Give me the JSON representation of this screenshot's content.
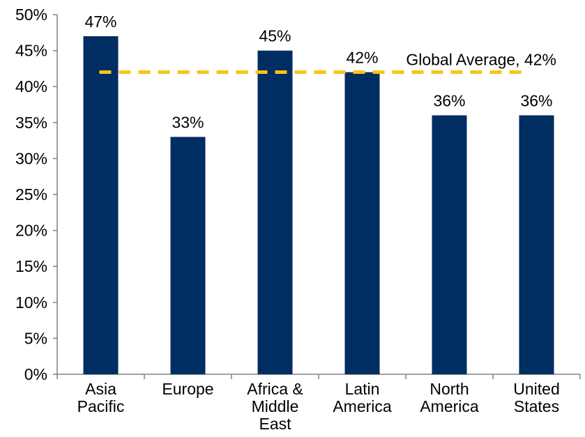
{
  "chart_data": {
    "type": "bar",
    "title": "",
    "xlabel": "",
    "ylabel": "",
    "categories": [
      [
        "Asia",
        "Pacific"
      ],
      [
        "Europe"
      ],
      [
        "Africa &",
        "Middle",
        "East"
      ],
      [
        "Latin",
        "America"
      ],
      [
        "North",
        "America"
      ],
      [
        "United",
        "States"
      ]
    ],
    "values": [
      47,
      33,
      45,
      42,
      36,
      36
    ],
    "data_labels": [
      "47%",
      "33%",
      "45%",
      "42%",
      "36%",
      "36%"
    ],
    "ylim": [
      0,
      50
    ],
    "yticks": [
      0,
      5,
      10,
      15,
      20,
      25,
      30,
      35,
      40,
      45,
      50
    ],
    "ytick_labels": [
      "0%",
      "5%",
      "10%",
      "15%",
      "20%",
      "25%",
      "30%",
      "35%",
      "40%",
      "45%",
      "50%"
    ],
    "grid": false,
    "reference_line": {
      "value": 42,
      "label": "Global Average, 42%",
      "style": "dashed"
    },
    "colors": {
      "bar": "#002D62",
      "reference_line": "#F5C518",
      "axis": "#808080",
      "text": "#000000"
    }
  }
}
